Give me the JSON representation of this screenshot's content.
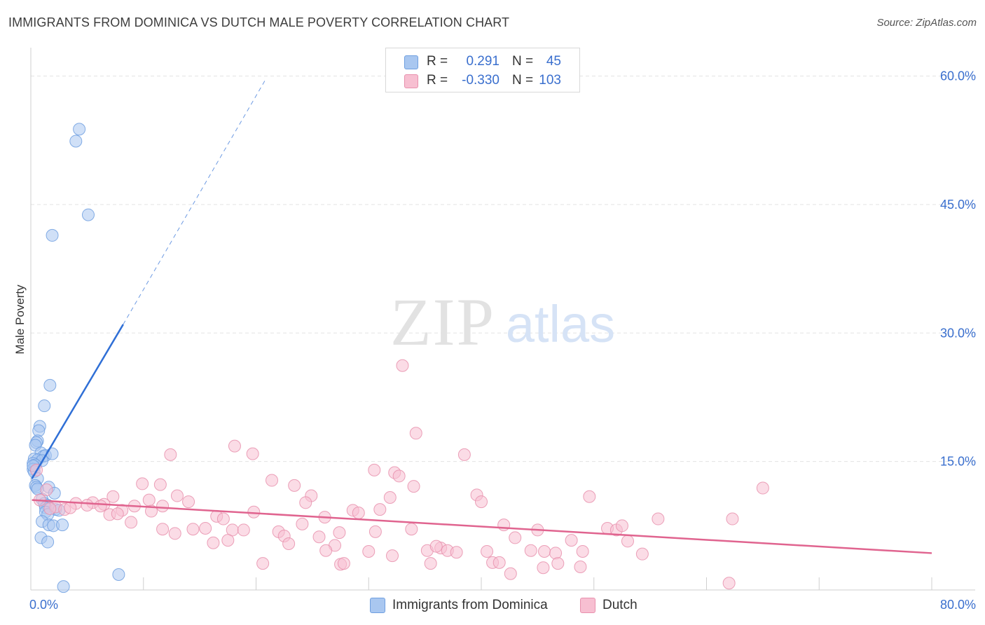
{
  "title": "IMMIGRANTS FROM DOMINICA VS DUTCH MALE POVERTY CORRELATION CHART",
  "source": "Source: ZipAtlas.com",
  "watermark": {
    "zip": "ZIP",
    "atlas": "atlas"
  },
  "legend": {
    "rows": [
      {
        "r_label": "R =",
        "r_value": "0.291",
        "n_label": "N =",
        "n_value": "45",
        "color": "#a9c7f0",
        "border": "#6f9fe0"
      },
      {
        "r_label": "R =",
        "r_value": "-0.330",
        "n_label": "N =",
        "n_value": "103",
        "color": "#f7bfd1",
        "border": "#e890ad"
      }
    ]
  },
  "bottom_legend": [
    {
      "label": "Immigrants from Dominica",
      "color": "#a9c7f0",
      "border": "#6f9fe0"
    },
    {
      "label": "Dutch",
      "color": "#f7bfd1",
      "border": "#e890ad"
    }
  ],
  "chart_data": {
    "type": "scatter",
    "title": "IMMIGRANTS FROM DOMINICA VS DUTCH MALE POVERTY CORRELATION CHART",
    "xlabel": "",
    "ylabel": "Male Poverty",
    "xlim": [
      0,
      80
    ],
    "ylim": [
      0,
      62.5
    ],
    "x_tick_labels": [
      {
        "value": 0,
        "label": "0.0%"
      },
      {
        "value": 80,
        "label": "80.0%"
      }
    ],
    "y_tick_labels": [
      {
        "value": 15,
        "label": "15.0%"
      },
      {
        "value": 30,
        "label": "30.0%"
      },
      {
        "value": 45,
        "label": "45.0%"
      },
      {
        "value": 60,
        "label": "60.0%"
      }
    ],
    "grid": true,
    "legend_position": "top-center",
    "series": [
      {
        "name": "Immigrants from Dominica",
        "color": "#6f9fe0",
        "fill": "#a9c7f0",
        "trend": {
          "x": [
            0.1,
            8.2
          ],
          "y": [
            13.0,
            31.0
          ],
          "dashed_to": {
            "x": 20.8,
            "y": 59.5
          },
          "color": "#2f6fd6"
        },
        "points": [
          [
            4.3,
            53.8
          ],
          [
            4.0,
            52.4
          ],
          [
            5.1,
            43.8
          ],
          [
            1.9,
            41.4
          ],
          [
            1.7,
            23.9
          ],
          [
            1.2,
            21.5
          ],
          [
            0.8,
            19.1
          ],
          [
            0.7,
            18.6
          ],
          [
            0.6,
            17.4
          ],
          [
            0.5,
            17.2
          ],
          [
            0.4,
            16.9
          ],
          [
            0.9,
            16.0
          ],
          [
            1.1,
            15.6
          ],
          [
            1.3,
            15.7
          ],
          [
            1.9,
            15.9
          ],
          [
            0.3,
            15.3
          ],
          [
            0.6,
            15.2
          ],
          [
            1.0,
            15.1
          ],
          [
            0.2,
            14.8
          ],
          [
            0.4,
            14.6
          ],
          [
            0.2,
            14.1
          ],
          [
            0.3,
            13.8
          ],
          [
            0.6,
            13.0
          ],
          [
            0.4,
            12.2
          ],
          [
            0.5,
            12.0
          ],
          [
            1.6,
            12.0
          ],
          [
            0.6,
            11.8
          ],
          [
            2.1,
            11.3
          ],
          [
            1.0,
            10.6
          ],
          [
            1.2,
            10.1
          ],
          [
            1.5,
            9.9
          ],
          [
            1.3,
            9.6
          ],
          [
            2.2,
            9.4
          ],
          [
            2.5,
            9.3
          ],
          [
            1.3,
            9.1
          ],
          [
            1.5,
            8.8
          ],
          [
            1.0,
            8.0
          ],
          [
            1.6,
            7.6
          ],
          [
            2.0,
            7.5
          ],
          [
            2.8,
            7.6
          ],
          [
            0.9,
            6.1
          ],
          [
            1.5,
            5.6
          ],
          [
            7.8,
            1.8
          ],
          [
            2.9,
            0.4
          ],
          [
            0.2,
            14.5
          ]
        ]
      },
      {
        "name": "Dutch",
        "color": "#e890ad",
        "fill": "#f7bfd1",
        "trend": {
          "x": [
            0.1,
            80.0
          ],
          "y": [
            10.5,
            4.3
          ],
          "color": "#e0648f"
        },
        "points": [
          [
            33.0,
            26.2
          ],
          [
            34.2,
            18.3
          ],
          [
            18.1,
            16.8
          ],
          [
            12.4,
            15.8
          ],
          [
            19.7,
            15.9
          ],
          [
            38.5,
            15.8
          ],
          [
            30.5,
            14.0
          ],
          [
            32.3,
            13.7
          ],
          [
            32.7,
            13.3
          ],
          [
            21.4,
            12.8
          ],
          [
            9.9,
            12.4
          ],
          [
            11.5,
            12.3
          ],
          [
            23.4,
            12.2
          ],
          [
            34.0,
            12.1
          ],
          [
            65.0,
            11.9
          ],
          [
            1.4,
            11.7
          ],
          [
            7.3,
            10.9
          ],
          [
            13.0,
            11.0
          ],
          [
            24.9,
            11.0
          ],
          [
            39.6,
            11.1
          ],
          [
            31.9,
            10.8
          ],
          [
            49.6,
            10.9
          ],
          [
            10.5,
            10.5
          ],
          [
            14.0,
            10.3
          ],
          [
            24.4,
            10.2
          ],
          [
            40.0,
            10.3
          ],
          [
            4.0,
            10.1
          ],
          [
            5.5,
            10.2
          ],
          [
            6.5,
            10.0
          ],
          [
            9.2,
            9.8
          ],
          [
            11.7,
            9.8
          ],
          [
            2.2,
            9.7
          ],
          [
            1.7,
            9.5
          ],
          [
            6.2,
            9.8
          ],
          [
            3.0,
            9.4
          ],
          [
            3.5,
            9.6
          ],
          [
            5.0,
            9.9
          ],
          [
            8.1,
            9.3
          ],
          [
            10.7,
            9.2
          ],
          [
            28.6,
            9.3
          ],
          [
            19.8,
            9.1
          ],
          [
            31.0,
            9.4
          ],
          [
            7.0,
            8.8
          ],
          [
            7.7,
            8.9
          ],
          [
            16.5,
            8.6
          ],
          [
            17.1,
            8.3
          ],
          [
            26.1,
            8.5
          ],
          [
            29.1,
            9.0
          ],
          [
            55.7,
            8.3
          ],
          [
            62.3,
            8.3
          ],
          [
            8.9,
            7.9
          ],
          [
            24.1,
            7.7
          ],
          [
            42.0,
            7.6
          ],
          [
            33.8,
            7.1
          ],
          [
            11.7,
            7.1
          ],
          [
            14.4,
            7.1
          ],
          [
            15.5,
            7.2
          ],
          [
            17.9,
            7.0
          ],
          [
            18.9,
            7.0
          ],
          [
            45.0,
            7.0
          ],
          [
            51.2,
            7.2
          ],
          [
            52.0,
            7.0
          ],
          [
            52.5,
            7.5
          ],
          [
            22.0,
            6.8
          ],
          [
            12.8,
            6.6
          ],
          [
            27.4,
            6.7
          ],
          [
            30.6,
            6.8
          ],
          [
            22.5,
            6.3
          ],
          [
            43.0,
            6.1
          ],
          [
            25.6,
            6.2
          ],
          [
            48.0,
            5.8
          ],
          [
            53.0,
            5.7
          ],
          [
            17.5,
            5.8
          ],
          [
            16.2,
            5.5
          ],
          [
            22.9,
            5.4
          ],
          [
            27.0,
            5.2
          ],
          [
            35.2,
            4.6
          ],
          [
            36.4,
            4.9
          ],
          [
            37.0,
            4.6
          ],
          [
            30.0,
            4.5
          ],
          [
            36.0,
            5.1
          ],
          [
            40.5,
            4.5
          ],
          [
            44.4,
            4.6
          ],
          [
            45.6,
            4.5
          ],
          [
            46.6,
            4.3
          ],
          [
            49.0,
            4.5
          ],
          [
            54.3,
            4.2
          ],
          [
            32.1,
            4.0
          ],
          [
            37.8,
            4.4
          ],
          [
            26.2,
            4.6
          ],
          [
            41.0,
            3.2
          ],
          [
            41.6,
            3.2
          ],
          [
            46.8,
            3.1
          ],
          [
            20.6,
            3.1
          ],
          [
            27.5,
            3.0
          ],
          [
            27.8,
            3.1
          ],
          [
            35.5,
            3.1
          ],
          [
            45.5,
            2.6
          ],
          [
            48.8,
            2.7
          ],
          [
            42.6,
            1.9
          ],
          [
            62.0,
            0.8
          ],
          [
            0.5,
            14.0
          ],
          [
            0.8,
            10.5
          ]
        ]
      }
    ]
  }
}
